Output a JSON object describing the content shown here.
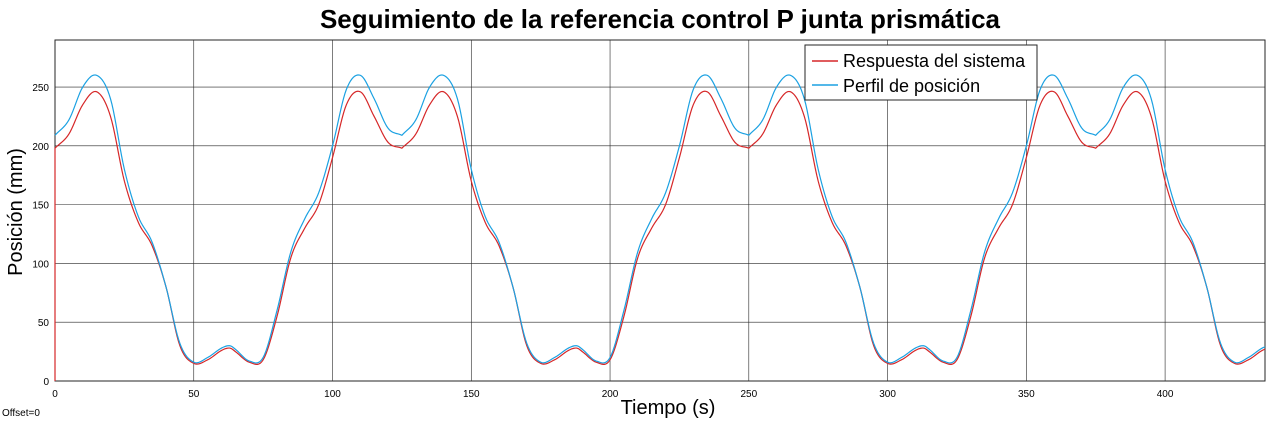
{
  "chart_data": {
    "type": "line",
    "title": "Seguimiento de la referencia control P junta prismática",
    "xlabel": "Tiempo (s)",
    "ylabel": "Posición (mm)",
    "xlim": [
      0,
      436
    ],
    "ylim": [
      0,
      290
    ],
    "xticks": [
      0,
      50,
      100,
      150,
      200,
      250,
      300,
      350,
      400
    ],
    "yticks": [
      0,
      50,
      100,
      150,
      200,
      250
    ],
    "grid": true,
    "legend_position": "top-right",
    "offset_text": "Offset=0",
    "period": 125,
    "series": [
      {
        "name": "Respuesta del sistema",
        "color": "#d62728",
        "x": [
          0,
          5,
          10,
          15,
          20,
          25,
          30,
          35,
          40,
          45,
          50,
          55,
          60,
          63,
          65,
          70,
          75,
          80,
          85,
          90,
          95,
          100,
          105,
          110,
          115,
          120,
          125
        ],
        "y": [
          198,
          210,
          235,
          246,
          225,
          170,
          135,
          115,
          80,
          30,
          15,
          18,
          26,
          28,
          25,
          16,
          18,
          55,
          105,
          130,
          150,
          190,
          235,
          246,
          225,
          203,
          198
        ]
      },
      {
        "name": "Perfil de posición",
        "color": "#1ba1e2",
        "x": [
          0,
          5,
          10,
          15,
          20,
          25,
          30,
          35,
          40,
          45,
          50,
          55,
          60,
          63,
          65,
          70,
          75,
          80,
          85,
          90,
          95,
          100,
          105,
          110,
          115,
          120,
          125
        ],
        "y": [
          209,
          222,
          250,
          260,
          240,
          180,
          140,
          118,
          80,
          32,
          16,
          20,
          28,
          30,
          27,
          17,
          20,
          60,
          110,
          138,
          160,
          200,
          248,
          260,
          240,
          215,
          209
        ]
      }
    ]
  }
}
